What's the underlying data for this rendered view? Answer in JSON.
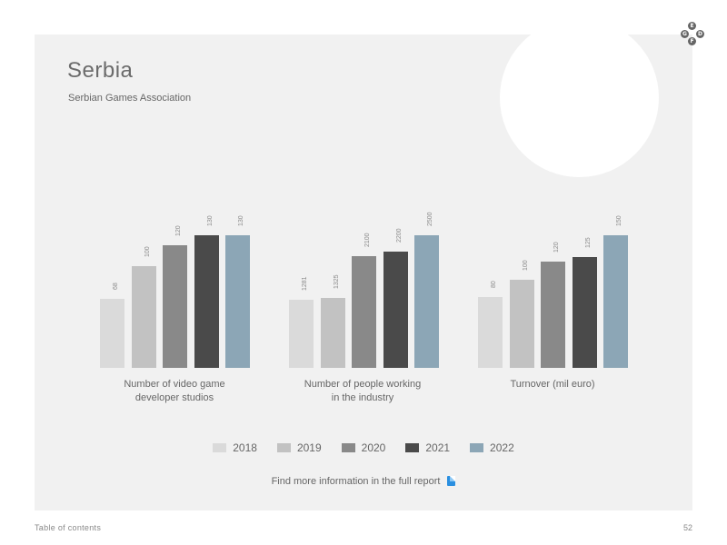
{
  "page": {
    "title": "Serbia",
    "subtitle": "Serbian Games Association",
    "more_info": "Find more information in the full report",
    "footer_left": "Table of contents",
    "page_number": "52"
  },
  "logo": {
    "letters": [
      "E",
      "G",
      "D",
      "F"
    ]
  },
  "colors": {
    "2018": "#dadada",
    "2019": "#c2c2c2",
    "2020": "#898989",
    "2021": "#4a4a4a",
    "2022": "#8ca6b6",
    "background": "#f1f1f1"
  },
  "legend": [
    "2018",
    "2019",
    "2020",
    "2021",
    "2022"
  ],
  "chart_data": [
    {
      "type": "bar",
      "title": "Number of video game developer studios",
      "caption_lines": [
        "Number of video game",
        "developer studios"
      ],
      "categories": [
        "2018",
        "2019",
        "2020",
        "2021",
        "2022"
      ],
      "values": [
        68,
        100,
        120,
        130,
        130
      ],
      "labels": [
        "68",
        "100",
        "120",
        "130",
        "130"
      ],
      "ylim": [
        0,
        130
      ]
    },
    {
      "type": "bar",
      "title": "Number of people working in the industry",
      "caption_lines": [
        "Number of people working",
        "in the industry"
      ],
      "categories": [
        "2018",
        "2019",
        "2020",
        "2021",
        "2022"
      ],
      "values": [
        1281,
        1325,
        2100,
        2200,
        2500
      ],
      "labels": [
        "1281",
        "1325",
        "2100",
        "2200",
        "2500"
      ],
      "ylim": [
        0,
        2500
      ]
    },
    {
      "type": "bar",
      "title": "Turnover (mil euro)",
      "caption_lines": [
        "Turnover (mil euro)"
      ],
      "categories": [
        "2018",
        "2019",
        "2020",
        "2021",
        "2022"
      ],
      "values": [
        80,
        100,
        120,
        125,
        150
      ],
      "labels": [
        "80",
        "100",
        "120",
        "125",
        "150"
      ],
      "ylim": [
        0,
        150
      ]
    }
  ]
}
